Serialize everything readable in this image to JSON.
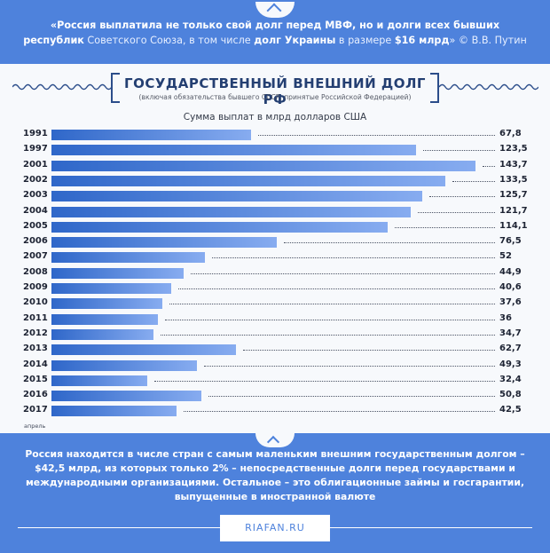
{
  "quote": {
    "part1": "«Россия выплатила не только свой долг перед МВФ, но и долги всех бывших",
    "part2": "республик",
    "part3": " Советского Союза, в том числе ",
    "part4": "долг Украины",
    "part5": " в размере ",
    "part6": "$16 млрд",
    "part7": "» © В.В. Путин"
  },
  "chart_data": {
    "type": "bar",
    "orientation": "horizontal",
    "title": "ГОСУДАРСТВЕННЫЙ ВНЕШНИЙ ДОЛГ РФ",
    "subtitle": "(включая обязательства бывшего СССР, принятые Российской Федерацией)",
    "unit_label": "Сумма выплат в млрд долларов США",
    "categories": [
      "1991",
      "1997",
      "2001",
      "2002",
      "2003",
      "2004",
      "2005",
      "2006",
      "2007",
      "2008",
      "2009",
      "2010",
      "2011",
      "2012",
      "2013",
      "2014",
      "2015",
      "2016",
      "2017"
    ],
    "values": [
      67.8,
      123.5,
      143.7,
      133.5,
      125.7,
      121.7,
      114.1,
      76.5,
      52,
      44.9,
      40.6,
      37.6,
      36,
      34.7,
      62.7,
      49.3,
      32.4,
      50.8,
      42.5
    ],
    "value_labels": [
      "67,8",
      "123,5",
      "143,7",
      "133,5",
      "125,7",
      "121,7",
      "114,1",
      "76,5",
      "52",
      "44,9",
      "40,6",
      "37,6",
      "36",
      "34,7",
      "62,7",
      "49,3",
      "32,4",
      "50,8",
      "42,5"
    ],
    "last_category_note": "апрель",
    "xlim": [
      0,
      145
    ],
    "bar_color_start": "#2f67c9",
    "bar_color_end": "#87acf0"
  },
  "footer": {
    "text": "Россия находится в числе стран с самым маленьким внешним государственным долгом – $42,5 млрд, из которых только 2% – непосредственные долги перед государствами и международными организациями. Остальное – это облигационные займы и госгарантии, выпущенные в иностранной валюте",
    "site": "RIAFAN.RU"
  },
  "colors": {
    "banner": "#4e82dc",
    "title": "#243f72"
  }
}
